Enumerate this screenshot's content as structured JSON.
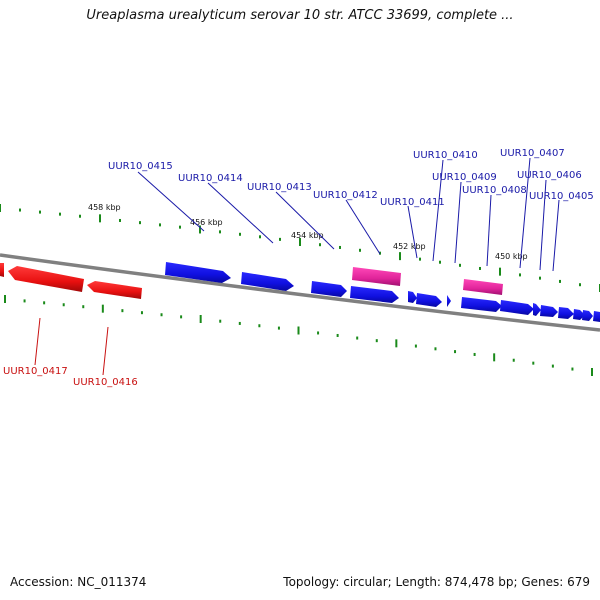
{
  "title": "Ureaplasma urealyticum serovar 10 str. ATCC 33699, complete ...",
  "footer": {
    "accession": "Accession: NC_011374",
    "summary": "Topology: circular; Length: 874,478 bp; Genes: 679"
  },
  "colors": {
    "forward": "#1010e0",
    "reverse": "#e81010",
    "pink": "#e0249a",
    "backbone": "#808080",
    "tick": "#1a8a1a",
    "label_blue": "#1a1aa8",
    "label_red": "#c81010"
  },
  "kbp_labels": [
    "458 kbp",
    "456 kbp",
    "454 kbp",
    "452 kbp",
    "450 kbp"
  ],
  "gene_labels": [
    {
      "text": "UUR10_0415",
      "color": "blue"
    },
    {
      "text": "UUR10_0414",
      "color": "blue"
    },
    {
      "text": "UUR10_0413",
      "color": "blue"
    },
    {
      "text": "UUR10_0412",
      "color": "blue"
    },
    {
      "text": "UUR10_0411",
      "color": "blue"
    },
    {
      "text": "UUR10_0410",
      "color": "blue"
    },
    {
      "text": "UUR10_0409",
      "color": "blue"
    },
    {
      "text": "UUR10_0408",
      "color": "blue"
    },
    {
      "text": "UUR10_0407",
      "color": "blue"
    },
    {
      "text": "UUR10_0406",
      "color": "blue"
    },
    {
      "text": "UUR10_0405",
      "color": "blue"
    },
    {
      "text": "UUR10_0417",
      "color": "red"
    },
    {
      "text": "UUR10_0416",
      "color": "red"
    }
  ]
}
